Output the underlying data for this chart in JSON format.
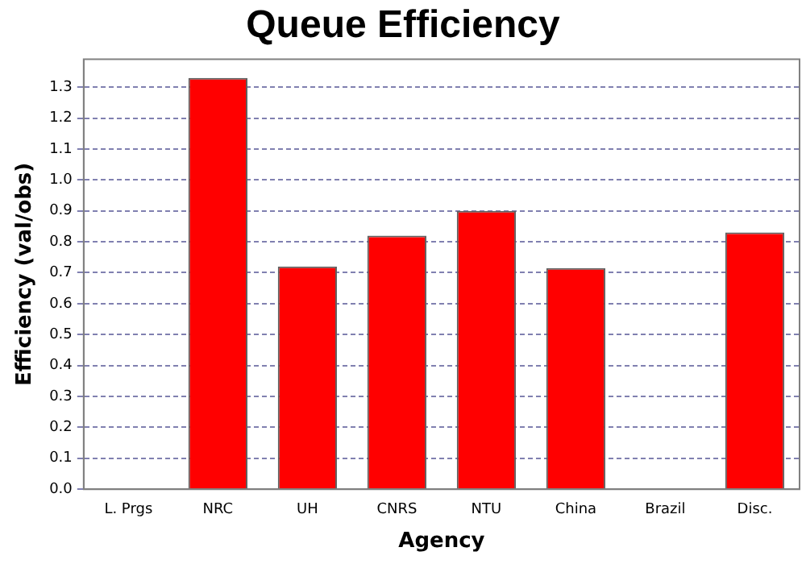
{
  "chart_data": {
    "type": "bar",
    "title": "Queue Efficiency",
    "xlabel": "Agency",
    "ylabel": "Efficiency (val/obs)",
    "categories": [
      "L. Prgs",
      "NRC",
      "UH",
      "CNRS",
      "NTU",
      "China",
      "Brazil",
      "Disc."
    ],
    "values": [
      0,
      1.33,
      0.72,
      0.82,
      0.9,
      0.715,
      0,
      0.83
    ],
    "color": "#ff0000",
    "ylim": [
      0,
      1.39
    ],
    "yticks": [
      {
        "value": 0,
        "label": "0.0"
      },
      {
        "value": 0.1,
        "label": "0.1"
      },
      {
        "value": 0.2,
        "label": "0.2"
      },
      {
        "value": 0.3,
        "label": "0.3"
      },
      {
        "value": 0.4,
        "label": "0.4"
      },
      {
        "value": 0.5,
        "label": "0.5"
      },
      {
        "value": 0.6,
        "label": "0.6"
      },
      {
        "value": 0.7,
        "label": "0.7"
      },
      {
        "value": 0.8,
        "label": "0.8"
      },
      {
        "value": 0.9,
        "label": "0.9"
      },
      {
        "value": 1,
        "label": "1.0"
      },
      {
        "value": 1.1,
        "label": "1.1"
      },
      {
        "value": 1.2,
        "label": "1.2"
      },
      {
        "value": 1.3,
        "label": "1.3"
      }
    ],
    "grid": "y"
  }
}
